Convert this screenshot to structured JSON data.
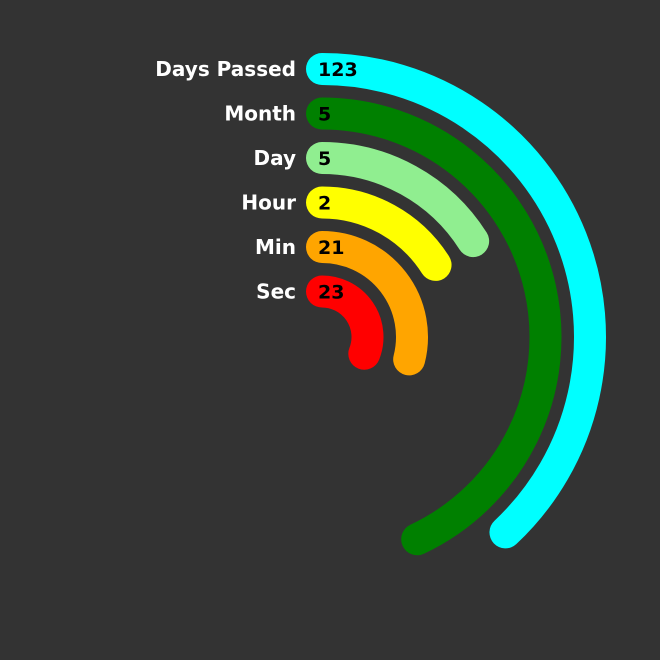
{
  "chart_data": {
    "type": "radial-bar",
    "series": [
      {
        "label": "Days Passed",
        "value": "123",
        "fraction": 0.38,
        "color": "#00ffff"
      },
      {
        "label": "Month",
        "value": "5",
        "fraction": 0.43,
        "color": "#008000"
      },
      {
        "label": "Day",
        "value": "5",
        "fraction": 0.16,
        "color": "#90ee90"
      },
      {
        "label": "Hour",
        "value": "2",
        "fraction": 0.16,
        "color": "#ffff00"
      },
      {
        "label": "Min",
        "value": "21",
        "fraction": 0.29,
        "color": "#ffa500"
      },
      {
        "label": "Sec",
        "value": "23",
        "fraction": 0.31,
        "color": "#ff0000"
      }
    ]
  }
}
